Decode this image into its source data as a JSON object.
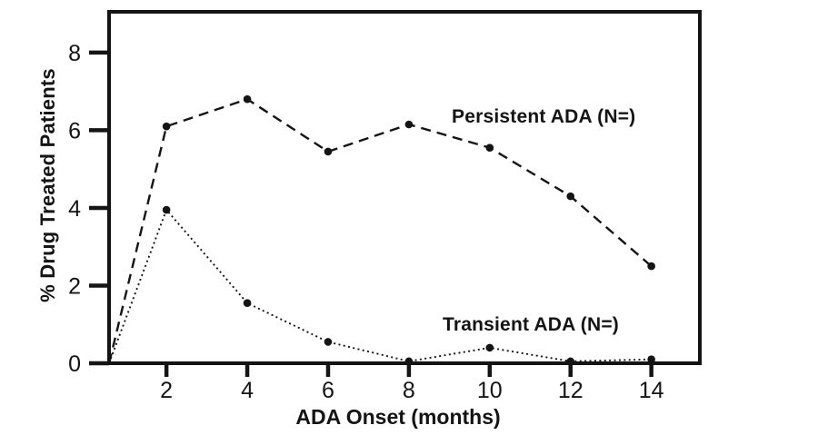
{
  "figure": {
    "background": "#ffffff",
    "ink_color": "#141414"
  },
  "chart_data": {
    "type": "line",
    "title": "",
    "xlabel": "ADA Onset (months)",
    "ylabel": "% Drug Treated Patients",
    "x": [
      2,
      4,
      6,
      8,
      10,
      12,
      14
    ],
    "series": [
      {
        "key": "persistent-ada",
        "name": "Persistent ADA (N=)",
        "line_style": "dashed",
        "marker": "filled-circle",
        "starts_at_axis_origin": true,
        "values": [
          6.1,
          6.8,
          5.45,
          6.15,
          5.55,
          4.3,
          2.5
        ]
      },
      {
        "key": "transient-ada",
        "name": "Transient ADA (N=)",
        "line_style": "dotted",
        "marker": "filled-circle",
        "starts_at_axis_origin": true,
        "values": [
          3.95,
          1.55,
          0.55,
          0.05,
          0.4,
          0.05,
          0.1
        ]
      }
    ],
    "x_axis": {
      "domain": [
        0.58,
        15.2
      ],
      "ticks": [
        2,
        4,
        6,
        8,
        10,
        12,
        14
      ]
    },
    "y_axis": {
      "domain": [
        0,
        9.05
      ],
      "ticks": [
        0,
        2,
        4,
        6,
        8
      ]
    },
    "grid": false,
    "legend_position": "inline-annotations"
  }
}
